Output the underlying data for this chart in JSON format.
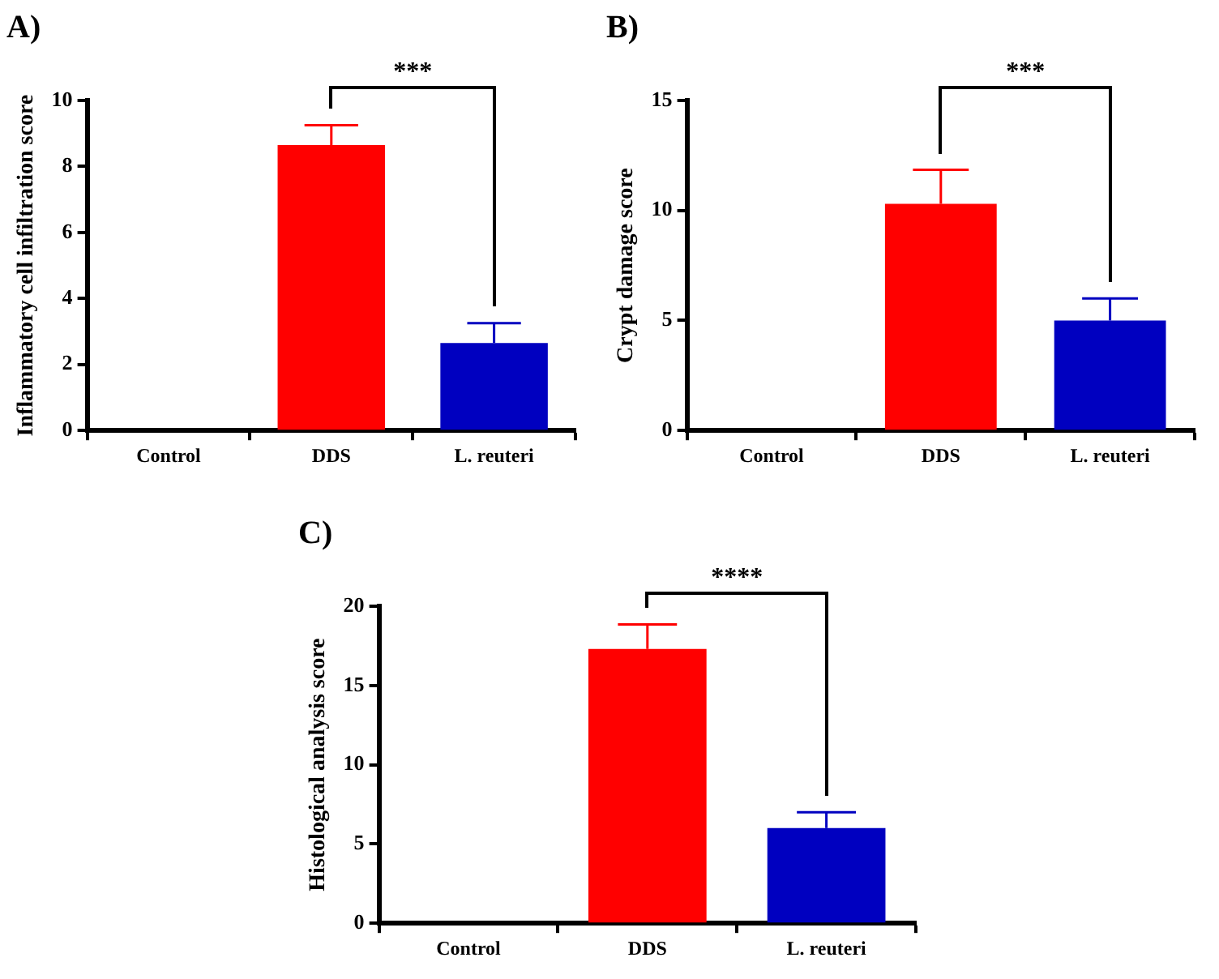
{
  "chart_data": [
    {
      "type": "bar",
      "title": "A)",
      "ylabel": "Inflammatory cell infiltration score",
      "categories": [
        "Control",
        "DDS",
        "L. reuteri"
      ],
      "values": [
        0,
        8.65,
        2.65
      ],
      "errors": [
        null,
        [
          8.65,
          9.25
        ],
        [
          2.65,
          3.25
        ]
      ],
      "colors": [
        null,
        "#ff0000",
        "#0000c0"
      ],
      "ylim": [
        0,
        10
      ],
      "yticks": [
        0,
        2,
        4,
        6,
        8,
        10
      ],
      "annotations": [
        "***"
      ]
    },
    {
      "type": "bar",
      "title": "B)",
      "ylabel": "Crypt damage score",
      "categories": [
        "Control",
        "DDS",
        "L. reuteri"
      ],
      "values": [
        0,
        10.3,
        5.0
      ],
      "errors": [
        null,
        [
          10.3,
          11.85
        ],
        [
          5.0,
          6.0
        ]
      ],
      "colors": [
        null,
        "#ff0000",
        "#0000c0"
      ],
      "ylim": [
        0,
        15
      ],
      "yticks": [
        0,
        5,
        10,
        15
      ],
      "annotations": [
        "***"
      ]
    },
    {
      "type": "bar",
      "title": "C)",
      "ylabel": "Histological analysis score",
      "categories": [
        "Control",
        "DDS",
        "L. reuteri"
      ],
      "values": [
        0,
        17.3,
        6.0
      ],
      "errors": [
        null,
        [
          17.3,
          18.85
        ],
        [
          6.0,
          7.0
        ]
      ],
      "colors": [
        null,
        "#ff0000",
        "#0000c0"
      ],
      "ylim": [
        0,
        20
      ],
      "yticks": [
        0,
        5,
        10,
        15,
        20
      ],
      "annotations": [
        "****"
      ]
    }
  ]
}
